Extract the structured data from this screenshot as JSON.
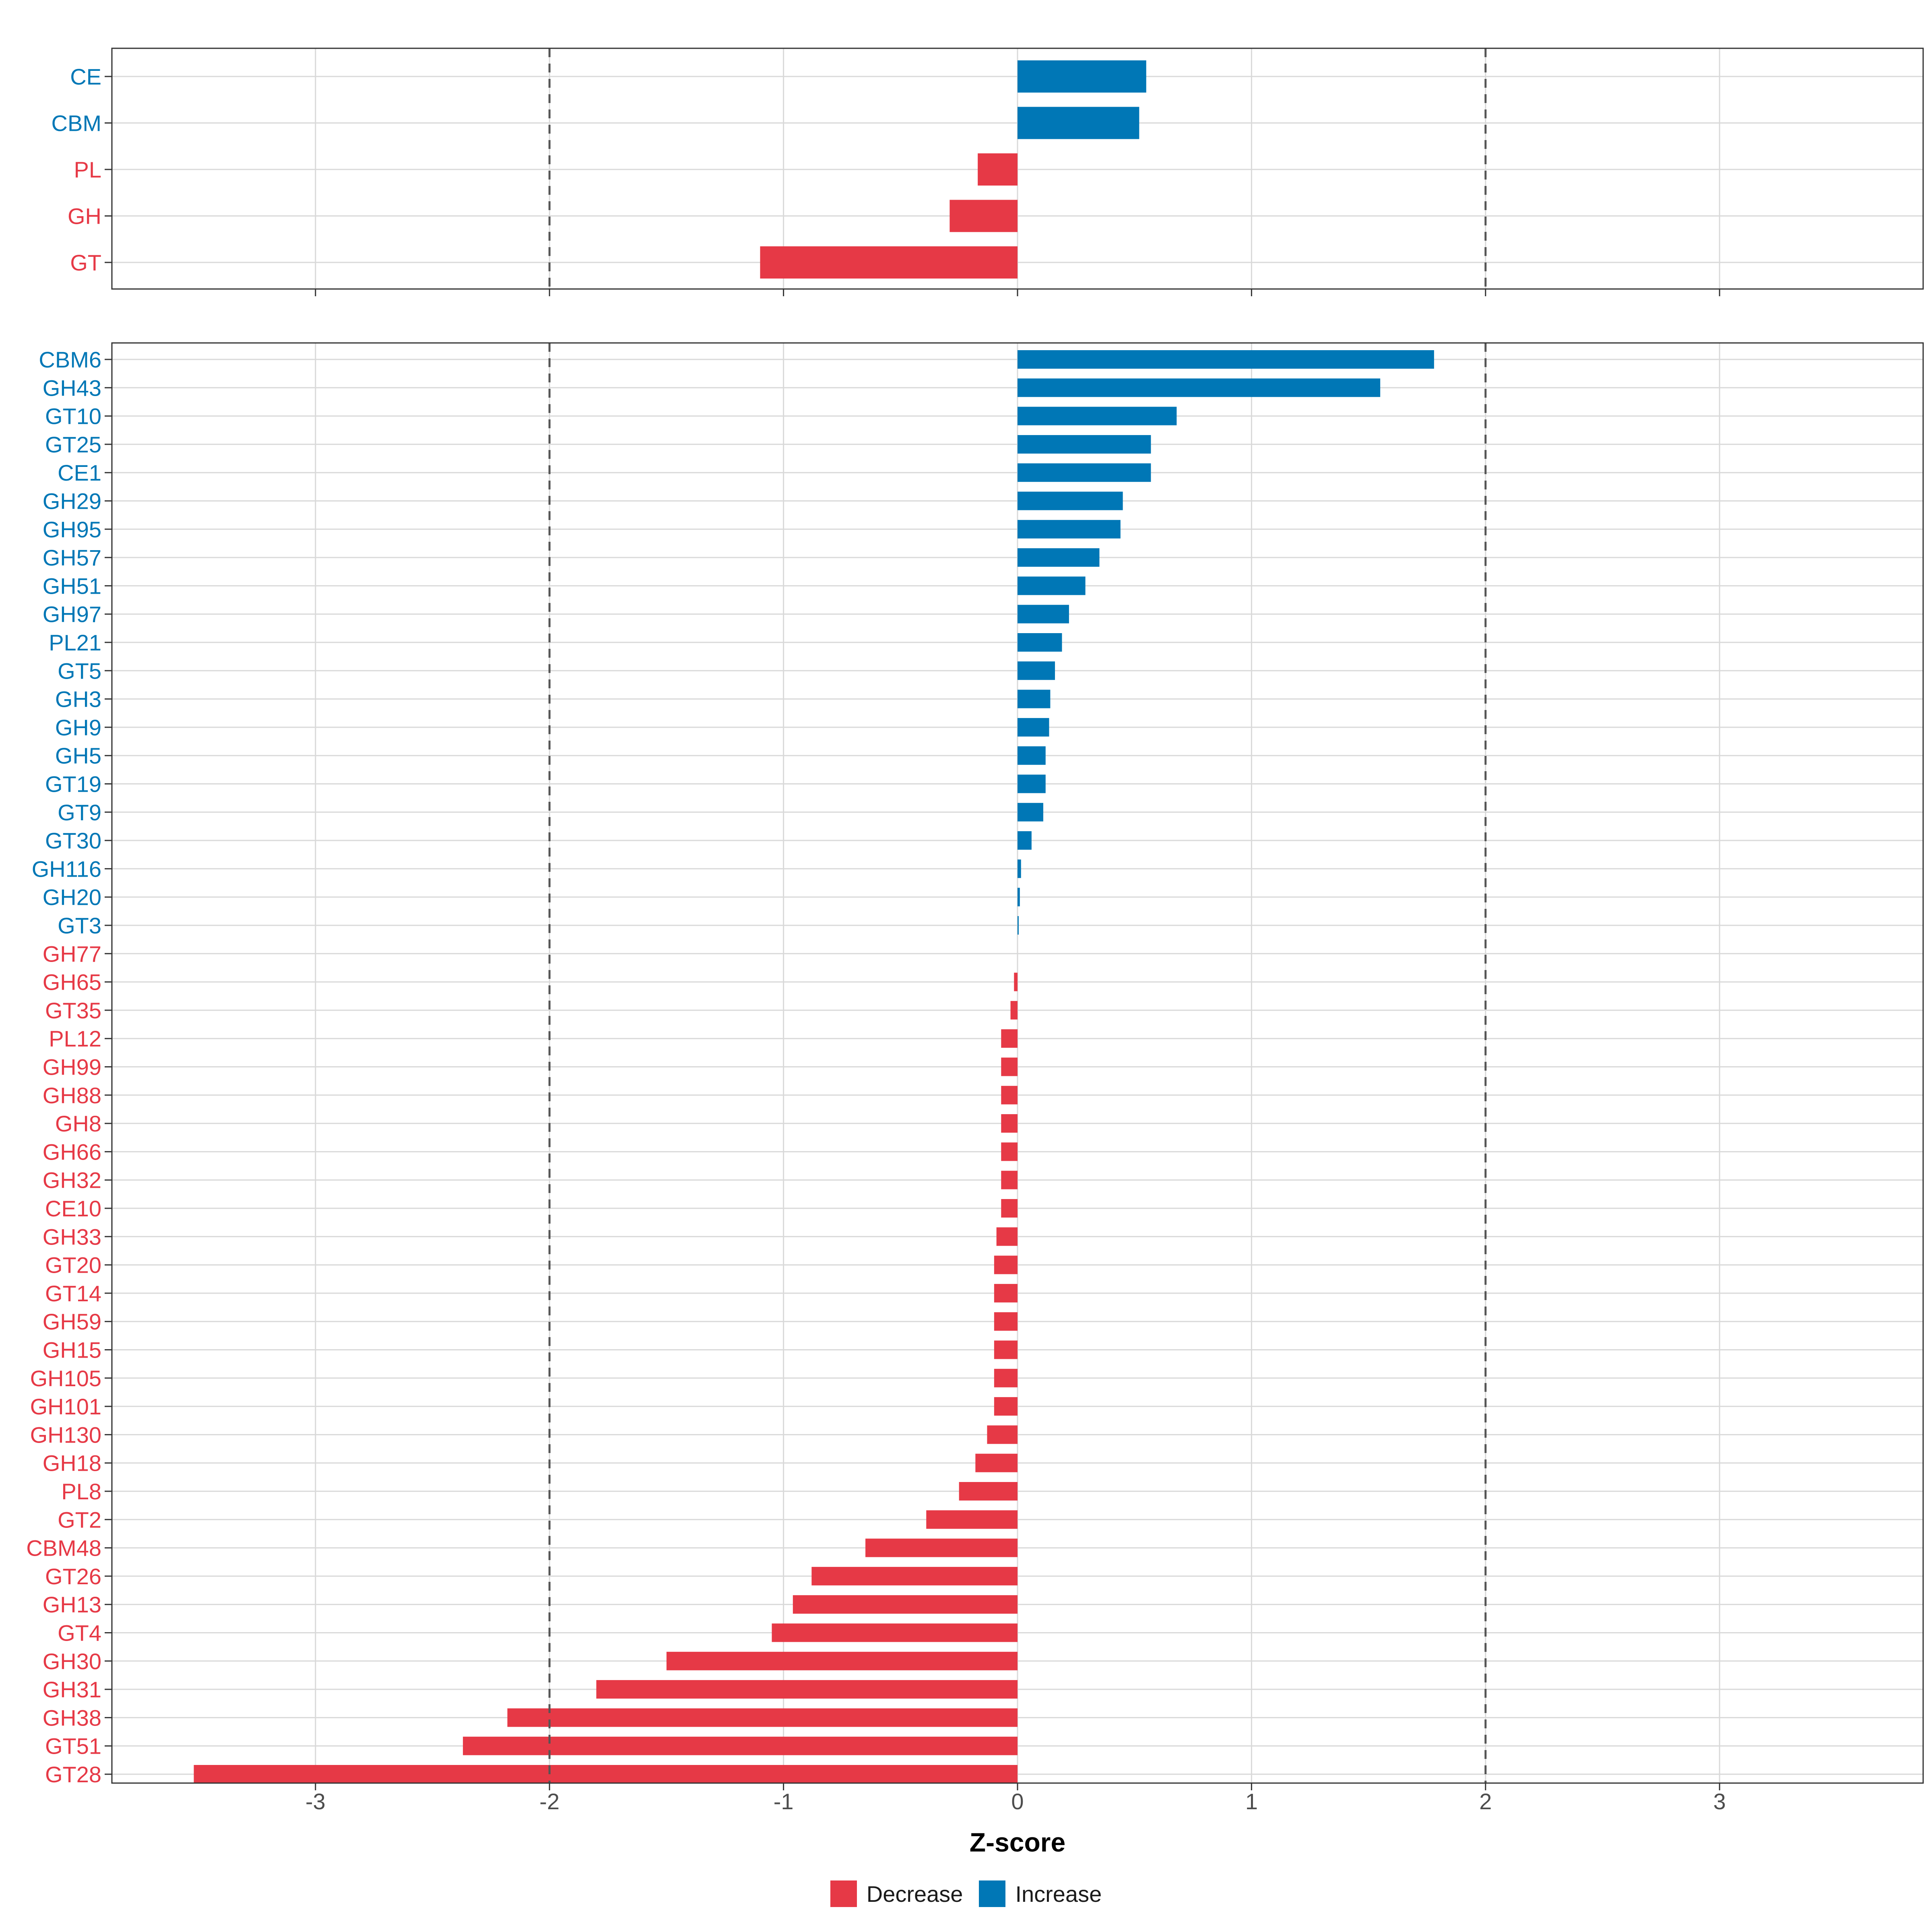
{
  "colors": {
    "decrease": "#E63946",
    "increase": "#0077B6",
    "grid": "#d9d9d9",
    "reference": "#555555",
    "axis_text": "#4d4d4d"
  },
  "chart_data": [
    {
      "type": "bar",
      "orientation": "horizontal",
      "panel": "top",
      "categories": [
        "CE",
        "CBM",
        "PL",
        "GH",
        "GT"
      ],
      "values": [
        0.55,
        0.52,
        -0.17,
        -0.29,
        -1.1
      ],
      "groups": [
        "Increase",
        "Increase",
        "Decrease",
        "Decrease",
        "Decrease"
      ],
      "xlim": [
        -3.87,
        3.87
      ],
      "reference_lines": [
        -2,
        2
      ],
      "grid": true
    },
    {
      "type": "bar",
      "orientation": "horizontal",
      "panel": "bottom",
      "categories": [
        "CBM6",
        "GH43",
        "GT10",
        "GT25",
        "CE1",
        "GH29",
        "GH95",
        "GH57",
        "GH51",
        "GH97",
        "PL21",
        "GT5",
        "GH3",
        "GH9",
        "GH5",
        "GT19",
        "GT9",
        "GT30",
        "GH116",
        "GH20",
        "GT3",
        "GH77",
        "GH65",
        "GT35",
        "PL12",
        "GH99",
        "GH88",
        "GH8",
        "GH66",
        "GH32",
        "CE10",
        "GH33",
        "GT20",
        "GT14",
        "GH59",
        "GH15",
        "GH105",
        "GH101",
        "GH130",
        "GH18",
        "PL8",
        "GT2",
        "CBM48",
        "GT26",
        "GH13",
        "GT4",
        "GH30",
        "GH31",
        "GH38",
        "GT51",
        "GT28"
      ],
      "values": [
        1.78,
        1.55,
        0.68,
        0.57,
        0.57,
        0.45,
        0.44,
        0.35,
        0.29,
        0.22,
        0.19,
        0.16,
        0.14,
        0.135,
        0.12,
        0.12,
        0.11,
        0.06,
        0.015,
        0.01,
        0.005,
        0.0,
        -0.015,
        -0.03,
        -0.07,
        -0.07,
        -0.07,
        -0.07,
        -0.07,
        -0.07,
        -0.07,
        -0.09,
        -0.1,
        -0.1,
        -0.1,
        -0.1,
        -0.1,
        -0.1,
        -0.13,
        -0.18,
        -0.25,
        -0.39,
        -0.65,
        -0.88,
        -0.96,
        -1.05,
        -1.5,
        -1.8,
        -2.18,
        -2.37,
        -3.52
      ],
      "groups": [
        "Increase",
        "Increase",
        "Increase",
        "Increase",
        "Increase",
        "Increase",
        "Increase",
        "Increase",
        "Increase",
        "Increase",
        "Increase",
        "Increase",
        "Increase",
        "Increase",
        "Increase",
        "Increase",
        "Increase",
        "Increase",
        "Increase",
        "Increase",
        "Increase",
        "Decrease",
        "Decrease",
        "Decrease",
        "Decrease",
        "Decrease",
        "Decrease",
        "Decrease",
        "Decrease",
        "Decrease",
        "Decrease",
        "Decrease",
        "Decrease",
        "Decrease",
        "Decrease",
        "Decrease",
        "Decrease",
        "Decrease",
        "Decrease",
        "Decrease",
        "Decrease",
        "Decrease",
        "Decrease",
        "Decrease",
        "Decrease",
        "Decrease",
        "Decrease",
        "Decrease",
        "Decrease",
        "Decrease",
        "Decrease"
      ],
      "xlim": [
        -3.87,
        3.87
      ],
      "xticks": [
        -3,
        -2,
        -1,
        0,
        1,
        2,
        3
      ],
      "xtick_labels": [
        "-3",
        "-2",
        "-1",
        "0",
        "1",
        "2",
        "3"
      ],
      "xlabel": "Z-score",
      "reference_lines": [
        -2,
        2
      ],
      "grid": true
    }
  ],
  "legend": {
    "position": "bottom",
    "entries": [
      {
        "label": "Decrease",
        "color": "#E63946"
      },
      {
        "label": "Increase",
        "color": "#0077B6"
      }
    ]
  }
}
